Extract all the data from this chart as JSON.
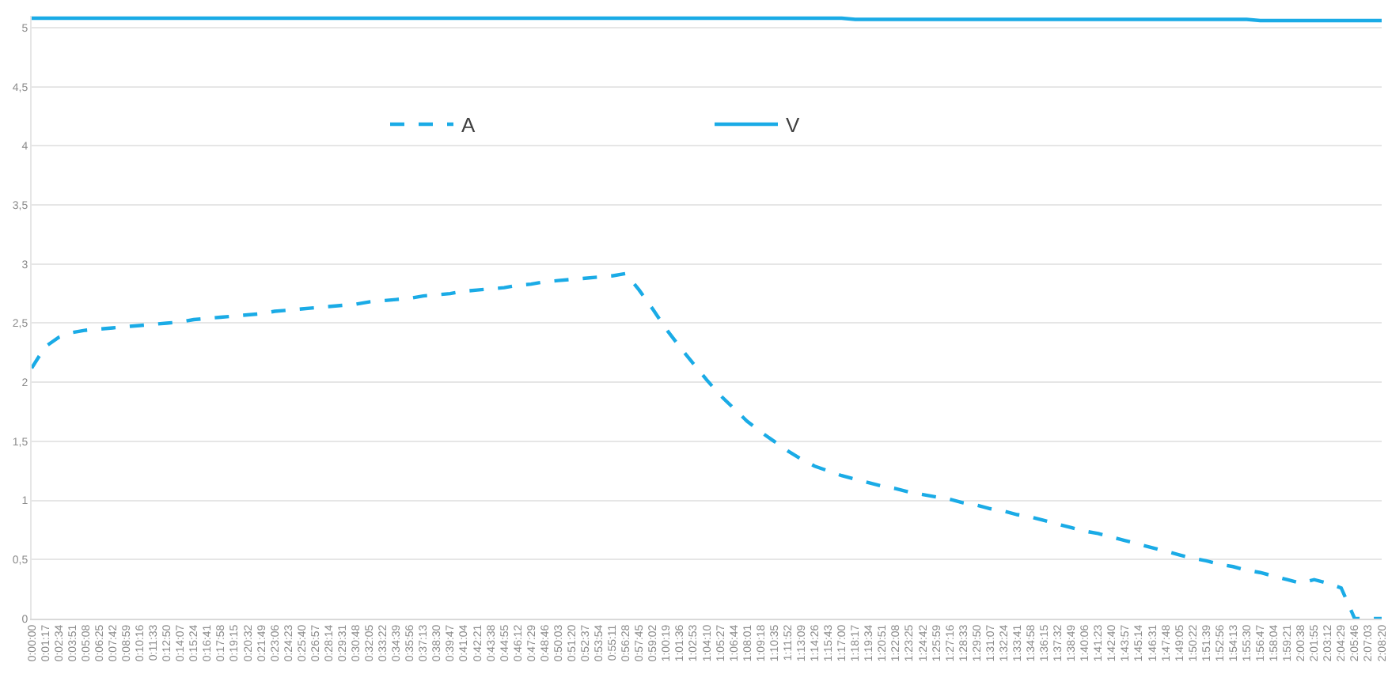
{
  "chart_data": {
    "type": "line",
    "categories": [
      "0:00:00",
      "0:01:17",
      "0:02:34",
      "0:03:51",
      "0:05:08",
      "0:06:25",
      "0:07:42",
      "0:08:59",
      "0:10:16",
      "0:11:33",
      "0:12:50",
      "0:14:07",
      "0:15:24",
      "0:16:41",
      "0:17:58",
      "0:19:15",
      "0:20:32",
      "0:21:49",
      "0:23:06",
      "0:24:23",
      "0:25:40",
      "0:26:57",
      "0:28:14",
      "0:29:31",
      "0:30:48",
      "0:32:05",
      "0:33:22",
      "0:34:39",
      "0:35:56",
      "0:37:13",
      "0:38:30",
      "0:39:47",
      "0:41:04",
      "0:42:21",
      "0:43:38",
      "0:44:55",
      "0:46:12",
      "0:47:29",
      "0:48:46",
      "0:50:03",
      "0:51:20",
      "0:52:37",
      "0:53:54",
      "0:55:11",
      "0:56:28",
      "0:57:45",
      "0:59:02",
      "1:00:19",
      "1:01:36",
      "1:02:53",
      "1:04:10",
      "1:05:27",
      "1:06:44",
      "1:08:01",
      "1:09:18",
      "1:10:35",
      "1:11:52",
      "1:13:09",
      "1:14:26",
      "1:15:43",
      "1:17:00",
      "1:18:17",
      "1:19:34",
      "1:20:51",
      "1:22:08",
      "1:23:25",
      "1:24:42",
      "1:25:59",
      "1:27:16",
      "1:28:33",
      "1:29:50",
      "1:31:07",
      "1:32:24",
      "1:33:41",
      "1:34:58",
      "1:36:15",
      "1:37:32",
      "1:38:49",
      "1:40:06",
      "1:41:23",
      "1:42:40",
      "1:43:57",
      "1:45:14",
      "1:46:31",
      "1:47:48",
      "1:49:05",
      "1:50:22",
      "1:51:39",
      "1:52:56",
      "1:54:13",
      "1:55:30",
      "1:56:47",
      "1:58:04",
      "1:59:21",
      "2:00:38",
      "2:01:55",
      "2:03:12",
      "2:04:29",
      "2:05:46",
      "2:07:03",
      "2:08:20"
    ],
    "series": [
      {
        "name": "A",
        "color": "#1aabe6",
        "line_style": "dashed",
        "values": [
          2.12,
          2.3,
          2.38,
          2.42,
          2.44,
          2.45,
          2.46,
          2.47,
          2.48,
          2.49,
          2.5,
          2.51,
          2.53,
          2.54,
          2.55,
          2.56,
          2.57,
          2.58,
          2.6,
          2.61,
          2.62,
          2.63,
          2.64,
          2.65,
          2.66,
          2.68,
          2.69,
          2.7,
          2.71,
          2.73,
          2.74,
          2.75,
          2.77,
          2.78,
          2.79,
          2.8,
          2.82,
          2.83,
          2.85,
          2.86,
          2.87,
          2.88,
          2.89,
          2.9,
          2.92,
          2.78,
          2.62,
          2.45,
          2.3,
          2.16,
          2.02,
          1.89,
          1.78,
          1.67,
          1.58,
          1.5,
          1.42,
          1.35,
          1.29,
          1.25,
          1.21,
          1.18,
          1.15,
          1.12,
          1.1,
          1.07,
          1.05,
          1.03,
          1.01,
          0.98,
          0.96,
          0.93,
          0.91,
          0.88,
          0.86,
          0.83,
          0.8,
          0.77,
          0.74,
          0.72,
          0.69,
          0.66,
          0.63,
          0.6,
          0.57,
          0.54,
          0.51,
          0.49,
          0.46,
          0.44,
          0.41,
          0.39,
          0.36,
          0.33,
          0.3,
          0.33,
          0.3,
          0.26,
          0,
          0,
          0
        ]
      },
      {
        "name": "V",
        "color": "#1aabe6",
        "line_style": "solid",
        "values": [
          5.08,
          5.08,
          5.08,
          5.08,
          5.08,
          5.08,
          5.08,
          5.08,
          5.08,
          5.08,
          5.08,
          5.08,
          5.08,
          5.08,
          5.08,
          5.08,
          5.08,
          5.08,
          5.08,
          5.08,
          5.08,
          5.08,
          5.08,
          5.08,
          5.08,
          5.08,
          5.08,
          5.08,
          5.08,
          5.08,
          5.08,
          5.08,
          5.08,
          5.08,
          5.08,
          5.08,
          5.08,
          5.08,
          5.08,
          5.08,
          5.08,
          5.08,
          5.08,
          5.08,
          5.08,
          5.08,
          5.08,
          5.08,
          5.08,
          5.08,
          5.08,
          5.08,
          5.08,
          5.08,
          5.08,
          5.08,
          5.08,
          5.08,
          5.08,
          5.08,
          5.08,
          5.07,
          5.07,
          5.07,
          5.07,
          5.07,
          5.07,
          5.07,
          5.07,
          5.07,
          5.07,
          5.07,
          5.07,
          5.07,
          5.07,
          5.07,
          5.07,
          5.07,
          5.07,
          5.07,
          5.07,
          5.07,
          5.07,
          5.07,
          5.07,
          5.07,
          5.07,
          5.07,
          5.07,
          5.07,
          5.07,
          5.06,
          5.06,
          5.06,
          5.06,
          5.06,
          5.06,
          5.06,
          5.06,
          5.06,
          5.06
        ]
      }
    ],
    "ylim": [
      0,
      5.1
    ],
    "yticks": [
      0,
      {
        "value": 0.5,
        "label": "0,5"
      },
      1,
      {
        "value": 1.5,
        "label": "1,5"
      },
      2,
      {
        "value": 2.5,
        "label": "2,5"
      },
      3,
      {
        "value": 3.5,
        "label": "3,5"
      },
      4,
      {
        "value": 4.5,
        "label": "4,5"
      },
      5
    ],
    "grid": "y",
    "legend": "top"
  }
}
